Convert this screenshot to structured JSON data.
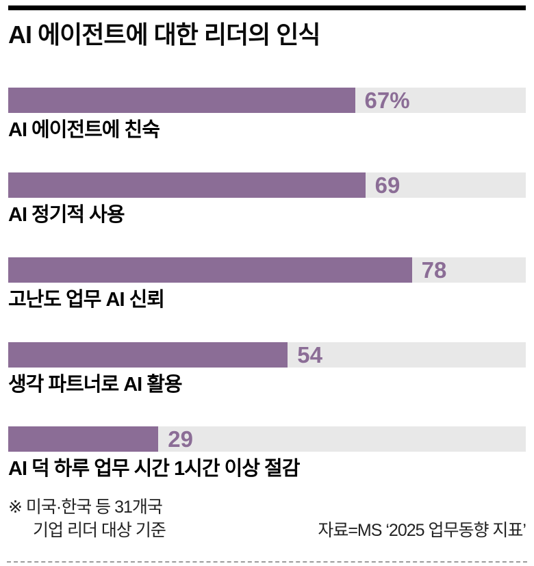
{
  "page": {
    "title": "AI 에이전트에 대한 리더의 인식"
  },
  "chart_data": {
    "type": "bar",
    "orientation": "horizontal",
    "title": "AI 에이전트에 대한 리더의 인식",
    "categories": [
      "AI 에이전트에 친숙",
      "AI 정기적 사용",
      "고난도 업무 AI 신뢰",
      "생각 파트너로 AI 활용",
      "AI 덕 하루 업무 시간 1시간 이상 절감"
    ],
    "values": [
      67,
      69,
      78,
      54,
      29
    ],
    "value_labels": [
      "67%",
      "69",
      "78",
      "54",
      "29"
    ],
    "xlim": [
      0,
      100
    ],
    "grid": false,
    "legend": "none",
    "bar_color": "#8b6d96",
    "track_color": "#e8e8e8"
  },
  "footer": {
    "note_line1": "※ 미국·한국 등 31개국",
    "note_line2": "기업 리더 대상 기준",
    "source": "자료=MS ‘2025 업무동향 지표’"
  }
}
